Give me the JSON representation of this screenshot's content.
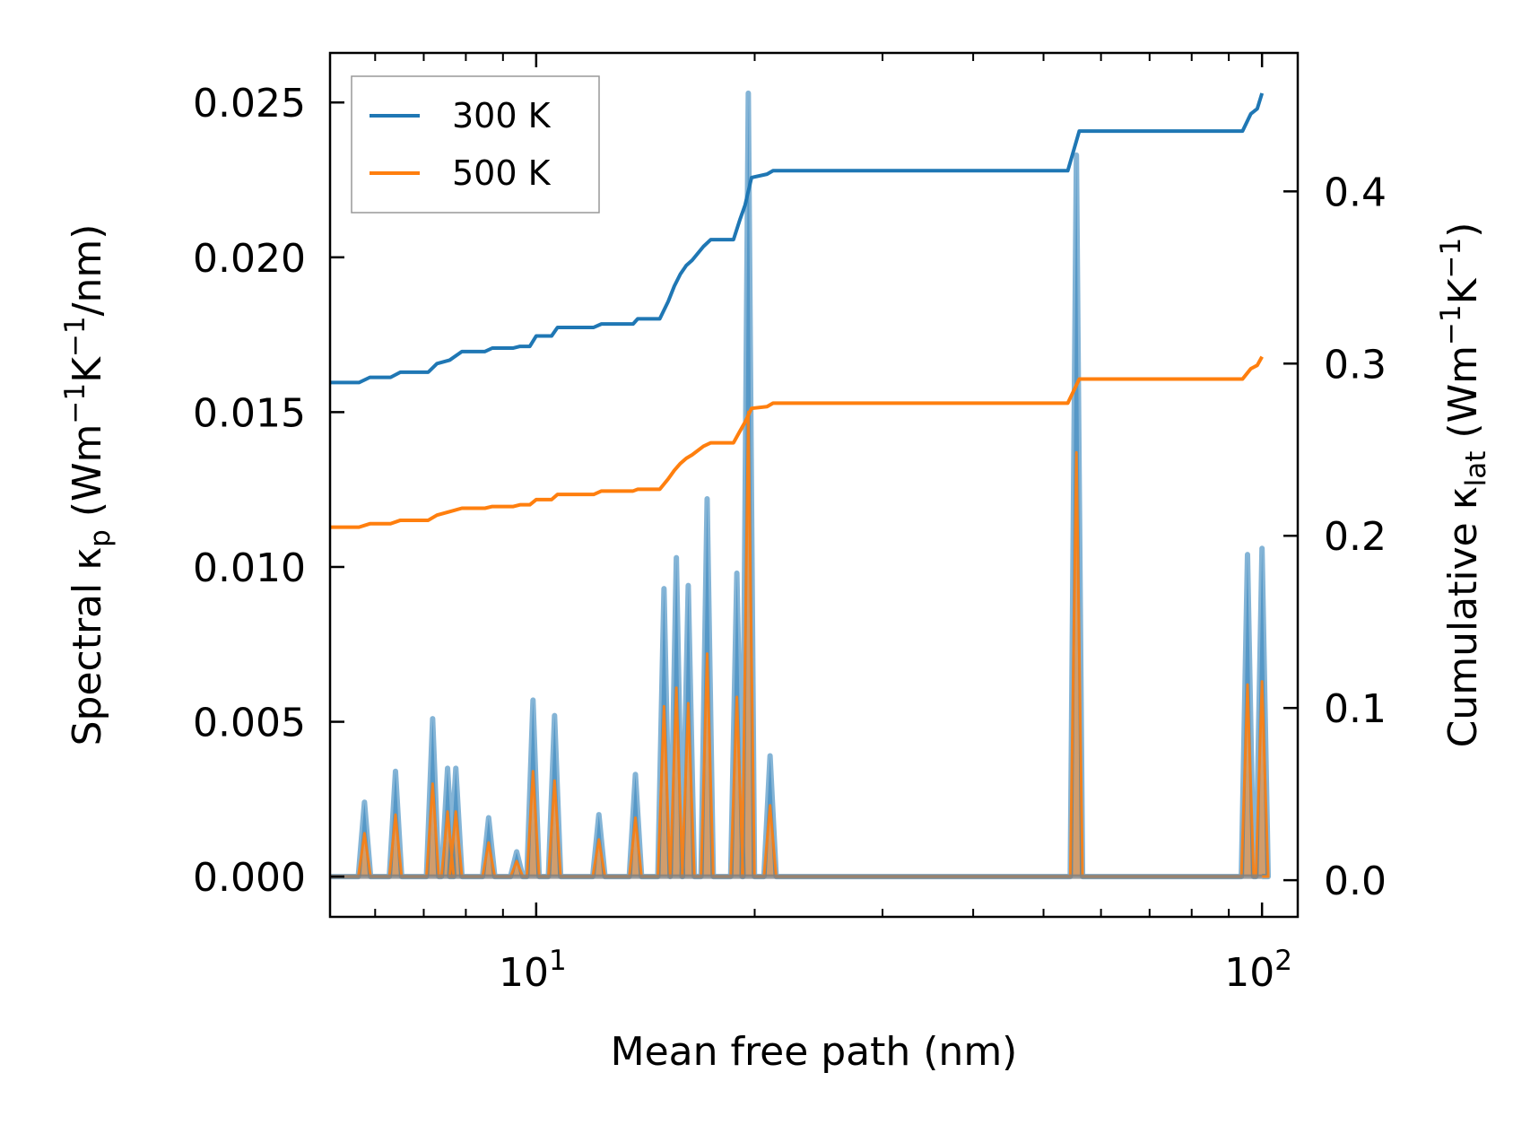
{
  "chart_data": {
    "type": "line",
    "xlabel": "Mean free path (nm)",
    "xscale": "log",
    "xlim": [
      5.2,
      112
    ],
    "x_ticks": [
      10,
      100
    ],
    "x_tick_labels": [
      {
        "base": "10",
        "exp": "1"
      },
      {
        "base": "10",
        "exp": "2"
      }
    ],
    "y_left": {
      "label_parts": [
        "Spectral κ",
        "p",
        " (Wm",
        "−1",
        "K",
        "−1",
        "/nm)"
      ],
      "lim": [
        -0.0013,
        0.0266
      ],
      "ticks": [
        0.0,
        0.005,
        0.01,
        0.015,
        0.02,
        0.025
      ],
      "tick_labels": [
        "0.000",
        "0.005",
        "0.010",
        "0.015",
        "0.020",
        "0.025"
      ]
    },
    "y_right": {
      "label_parts": [
        "Cumulative κ",
        "lat",
        " (Wm",
        "−1",
        "K",
        "−1",
        ")"
      ],
      "lim": [
        -0.0213,
        0.4804
      ],
      "ticks": [
        0.0,
        0.1,
        0.2,
        0.3,
        0.4
      ],
      "tick_labels": [
        "0.0",
        "0.1",
        "0.2",
        "0.3",
        "0.4"
      ]
    },
    "legend": {
      "location": "upper-left",
      "entries": [
        {
          "label": "300 K",
          "color": "#1f77b4"
        },
        {
          "label": "500 K",
          "color": "#ff7f0e"
        }
      ]
    },
    "spectral_peaks": [
      {
        "x": 5.8,
        "v300": 0.0024,
        "v500": 0.0014
      },
      {
        "x": 6.4,
        "v300": 0.0034,
        "v500": 0.002
      },
      {
        "x": 7.2,
        "v300": 0.0051,
        "v500": 0.003
      },
      {
        "x": 7.55,
        "v300": 0.0035,
        "v500": 0.0021
      },
      {
        "x": 7.75,
        "v300": 0.0035,
        "v500": 0.0021
      },
      {
        "x": 8.6,
        "v300": 0.0019,
        "v500": 0.0011
      },
      {
        "x": 9.4,
        "v300": 0.0008,
        "v500": 0.0005
      },
      {
        "x": 9.9,
        "v300": 0.0057,
        "v500": 0.0034
      },
      {
        "x": 10.6,
        "v300": 0.0052,
        "v500": 0.0031
      },
      {
        "x": 12.2,
        "v300": 0.002,
        "v500": 0.0012
      },
      {
        "x": 13.7,
        "v300": 0.0033,
        "v500": 0.0019
      },
      {
        "x": 15.0,
        "v300": 0.0093,
        "v500": 0.0055
      },
      {
        "x": 15.6,
        "v300": 0.0103,
        "v500": 0.0061
      },
      {
        "x": 16.2,
        "v300": 0.0094,
        "v500": 0.0056
      },
      {
        "x": 17.2,
        "v300": 0.0122,
        "v500": 0.0072
      },
      {
        "x": 18.9,
        "v300": 0.0098,
        "v500": 0.0058
      },
      {
        "x": 19.6,
        "v300": 0.0253,
        "v500": 0.015
      },
      {
        "x": 21.0,
        "v300": 0.0039,
        "v500": 0.0023
      },
      {
        "x": 55.5,
        "v300": 0.0233,
        "v500": 0.0137
      },
      {
        "x": 95.5,
        "v300": 0.0104,
        "v500": 0.0062
      },
      {
        "x": 100.0,
        "v300": 0.0106,
        "v500": 0.0063
      }
    ],
    "cumulative_300K": {
      "x": [
        5.2,
        5.7,
        5.9,
        6.3,
        6.5,
        7.1,
        7.3,
        7.6,
        7.9,
        8.5,
        8.7,
        9.3,
        9.5,
        9.8,
        10.0,
        10.5,
        10.7,
        12.0,
        12.3,
        13.6,
        13.8,
        14.8,
        15.2,
        15.5,
        15.8,
        16.1,
        16.4,
        17.0,
        17.4,
        18.7,
        19.1,
        19.4,
        19.8,
        20.8,
        21.2,
        54.0,
        56.0,
        94.0,
        96.5,
        98.5,
        100.0
      ],
      "y": [
        0.289,
        0.289,
        0.292,
        0.292,
        0.295,
        0.295,
        0.3,
        0.302,
        0.307,
        0.307,
        0.309,
        0.309,
        0.31,
        0.31,
        0.316,
        0.316,
        0.321,
        0.321,
        0.323,
        0.323,
        0.326,
        0.326,
        0.336,
        0.345,
        0.352,
        0.357,
        0.36,
        0.368,
        0.372,
        0.372,
        0.384,
        0.392,
        0.408,
        0.41,
        0.412,
        0.412,
        0.435,
        0.435,
        0.445,
        0.448,
        0.457
      ]
    },
    "cumulative_500K": {
      "x": [
        5.2,
        5.7,
        5.9,
        6.3,
        6.5,
        7.1,
        7.3,
        7.6,
        7.9,
        8.5,
        8.7,
        9.3,
        9.5,
        9.8,
        10.0,
        10.5,
        10.7,
        12.0,
        12.3,
        13.6,
        13.8,
        14.8,
        15.2,
        15.5,
        15.8,
        16.1,
        16.4,
        17.0,
        17.4,
        18.7,
        19.1,
        19.4,
        19.8,
        20.8,
        21.2,
        54.0,
        56.0,
        94.0,
        96.5,
        98.5,
        100.0
      ],
      "y": [
        0.205,
        0.205,
        0.207,
        0.207,
        0.209,
        0.209,
        0.212,
        0.214,
        0.216,
        0.216,
        0.217,
        0.217,
        0.218,
        0.218,
        0.221,
        0.221,
        0.224,
        0.224,
        0.226,
        0.226,
        0.227,
        0.227,
        0.233,
        0.238,
        0.242,
        0.245,
        0.247,
        0.252,
        0.254,
        0.254,
        0.261,
        0.266,
        0.274,
        0.275,
        0.277,
        0.277,
        0.291,
        0.291,
        0.297,
        0.299,
        0.304
      ]
    }
  }
}
